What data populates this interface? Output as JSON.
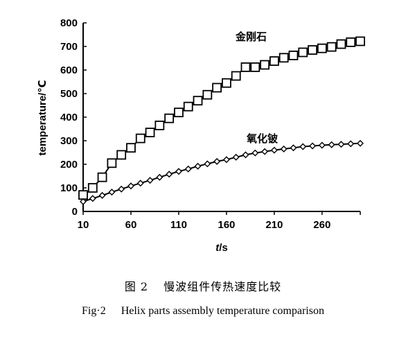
{
  "chart_data": {
    "type": "line",
    "xlabel_italic": "t",
    "xlabel_unit": "/s",
    "ylabel": "temperature/℃",
    "xlim": [
      10,
      300
    ],
    "ylim": [
      0,
      800
    ],
    "x_ticks": [
      10,
      60,
      110,
      160,
      210,
      260
    ],
    "y_ticks": [
      0,
      100,
      200,
      300,
      400,
      500,
      600,
      700,
      800
    ],
    "grid": false,
    "legend": "inline labels",
    "series": [
      {
        "name": "金刚石",
        "marker": "square",
        "x": [
          10,
          20,
          30,
          40,
          50,
          60,
          70,
          80,
          90,
          100,
          110,
          120,
          130,
          140,
          150,
          160,
          170,
          180,
          190,
          200,
          210,
          220,
          230,
          240,
          250,
          260,
          270,
          280,
          290,
          300
        ],
        "y": [
          70,
          100,
          145,
          205,
          240,
          270,
          310,
          335,
          365,
          395,
          420,
          445,
          470,
          495,
          525,
          545,
          575,
          612,
          612,
          622,
          638,
          652,
          662,
          675,
          685,
          692,
          698,
          710,
          718,
          722
        ]
      },
      {
        "name": "氧化铍",
        "marker": "diamond",
        "x": [
          10,
          20,
          30,
          40,
          50,
          60,
          70,
          80,
          90,
          100,
          110,
          120,
          130,
          140,
          150,
          160,
          170,
          180,
          190,
          200,
          210,
          220,
          230,
          240,
          250,
          260,
          270,
          280,
          290,
          300
        ],
        "y": [
          42,
          55,
          68,
          82,
          95,
          108,
          120,
          132,
          145,
          158,
          170,
          180,
          192,
          202,
          212,
          220,
          230,
          240,
          248,
          254,
          260,
          265,
          270,
          275,
          278,
          281,
          283,
          285,
          287,
          289
        ]
      }
    ]
  },
  "caption": {
    "cn_fig": "图 2",
    "cn_title": "慢波组件传热速度比较",
    "en_fig": "Fig·2",
    "en_title": "Helix parts assembly temperature comparison"
  }
}
